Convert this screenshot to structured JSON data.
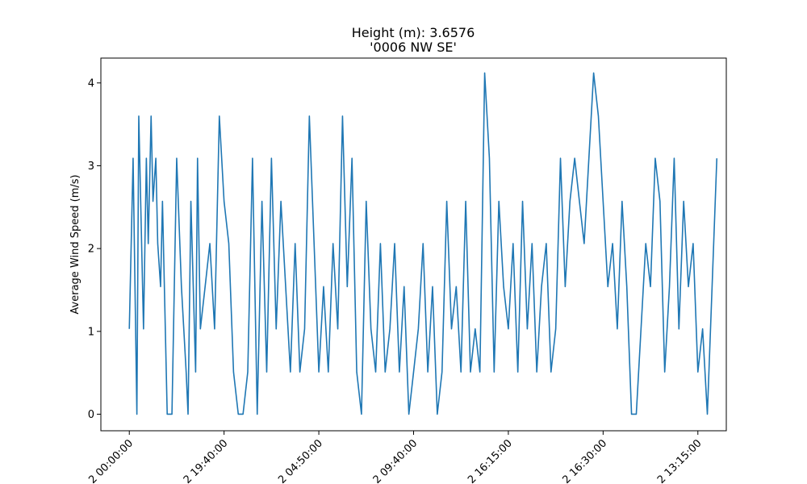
{
  "chart_data": {
    "type": "line",
    "title_lines": [
      "Height (m): 3.6576",
      "'0006 NW  SE'"
    ],
    "xlabel": "",
    "ylabel": "Average Wind Speed (m/s)",
    "ylim": [
      -0.2,
      4.3
    ],
    "yticks": [
      0,
      1,
      2,
      3,
      4
    ],
    "xlim": [
      -0.3,
      6.3
    ],
    "xticks": [
      0,
      1,
      2,
      3,
      4,
      5,
      6
    ],
    "xtick_labels": [
      "2 00:00:00",
      "2 19:40:00",
      "2 04:50:00",
      "2 09:40:00",
      "2 16:15:00",
      "2 16:30:00",
      "2 13:15:00"
    ],
    "grid": false,
    "color": "#1f77b4",
    "series": [
      {
        "x": [
          0.0,
          0.02,
          0.04,
          0.06,
          0.08,
          0.1,
          0.12,
          0.15,
          0.18,
          0.2,
          0.23,
          0.25,
          0.28,
          0.3,
          0.33,
          0.35,
          0.4,
          0.45,
          0.5,
          0.55,
          0.6,
          0.62,
          0.65,
          0.7,
          0.72,
          0.75,
          0.8,
          0.85,
          0.9,
          0.95,
          1.0,
          1.05,
          1.1,
          1.15,
          1.2,
          1.25,
          1.3,
          1.35,
          1.4,
          1.45,
          1.5,
          1.55,
          1.6,
          1.65,
          1.7,
          1.75,
          1.8,
          1.85,
          1.9,
          1.95,
          2.0,
          2.05,
          2.1,
          2.15,
          2.2,
          2.25,
          2.3,
          2.35,
          2.4,
          2.45,
          2.5,
          2.55,
          2.6,
          2.65,
          2.7,
          2.75,
          2.8,
          2.85,
          2.9,
          2.95,
          3.0,
          3.05,
          3.1,
          3.15,
          3.2,
          3.25,
          3.3,
          3.35,
          3.4,
          3.45,
          3.5,
          3.55,
          3.6,
          3.65,
          3.7,
          3.75,
          3.8,
          3.85,
          3.9,
          3.95,
          4.0,
          4.05,
          4.1,
          4.15,
          4.2,
          4.25,
          4.3,
          4.35,
          4.4,
          4.45,
          4.5,
          4.55,
          4.6,
          4.65,
          4.7,
          4.75,
          4.8,
          4.85,
          4.9,
          4.95,
          5.0,
          5.05,
          5.1,
          5.15,
          5.2,
          5.25,
          5.3,
          5.35,
          5.4,
          5.45,
          5.5,
          5.55,
          5.6,
          5.65,
          5.7,
          5.75,
          5.8,
          5.85,
          5.9,
          5.95,
          6.0,
          6.05,
          6.1,
          6.15,
          6.2
        ],
        "y": [
          1.03,
          2.06,
          3.09,
          1.54,
          0.0,
          3.6,
          2.57,
          1.03,
          3.09,
          2.06,
          3.6,
          2.57,
          3.09,
          2.06,
          1.54,
          2.57,
          0.0,
          0.0,
          3.09,
          1.54,
          0.51,
          0.0,
          2.57,
          0.51,
          3.09,
          1.03,
          1.54,
          2.06,
          1.03,
          3.6,
          2.57,
          2.06,
          0.51,
          0.0,
          0.0,
          0.51,
          3.09,
          0.0,
          2.57,
          0.51,
          3.09,
          1.03,
          2.57,
          1.54,
          0.51,
          2.06,
          0.51,
          1.03,
          3.6,
          2.06,
          0.51,
          1.54,
          0.51,
          2.06,
          1.03,
          3.6,
          1.54,
          3.09,
          0.51,
          0.0,
          2.57,
          1.03,
          0.51,
          2.06,
          0.51,
          1.03,
          2.06,
          0.51,
          1.54,
          0.0,
          0.51,
          1.03,
          2.06,
          0.51,
          1.54,
          0.0,
          0.51,
          2.57,
          1.03,
          1.54,
          0.51,
          2.57,
          0.51,
          1.03,
          0.51,
          4.12,
          3.09,
          0.51,
          2.57,
          1.54,
          1.03,
          2.06,
          0.51,
          2.57,
          1.03,
          2.06,
          0.51,
          1.54,
          2.06,
          0.51,
          1.03,
          3.09,
          1.54,
          2.57,
          3.09,
          2.57,
          2.06,
          3.09,
          4.12,
          3.6,
          2.57,
          1.54,
          2.06,
          1.03,
          2.57,
          1.54,
          0.0,
          0.0,
          1.03,
          2.06,
          1.54,
          3.09,
          2.57,
          0.51,
          1.54,
          3.09,
          1.03,
          2.57,
          1.54,
          2.06,
          0.51,
          1.03,
          0.0,
          1.54,
          3.09
        ]
      }
    ]
  }
}
